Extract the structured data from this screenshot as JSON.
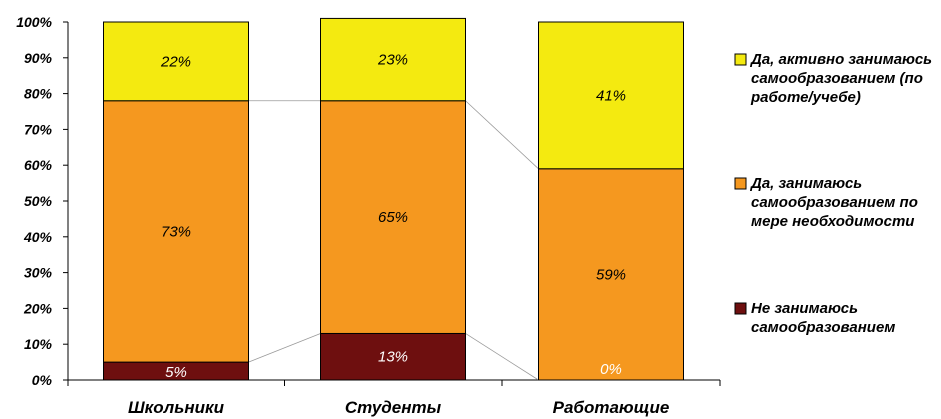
{
  "chart_data": {
    "type": "bar",
    "stacked": true,
    "percent_stacked": true,
    "categories": [
      "Школьники",
      "Студенты",
      "Работающие"
    ],
    "ylim": [
      0,
      100
    ],
    "yticks": [
      "0%",
      "10%",
      "20%",
      "30%",
      "40%",
      "50%",
      "60%",
      "70%",
      "80%",
      "90%",
      "100%"
    ],
    "series": [
      {
        "name": "Не занимаюсь самообразованием",
        "values": [
          5,
          13,
          0
        ],
        "labels": [
          "5%",
          "13%",
          "0%"
        ],
        "color": "#6e0f0f",
        "label_color": "#ffffff"
      },
      {
        "name": "Да, занимаюсь самообразованием по мере необходимости",
        "values": [
          73,
          65,
          59
        ],
        "labels": [
          "73%",
          "65%",
          "59%"
        ],
        "color": "#f5981f",
        "label_color": "#000000"
      },
      {
        "name": "Да, активно занимаюсь самообразованием (по работе/учебе)",
        "values": [
          22,
          23,
          41
        ],
        "labels": [
          "22%",
          "23%",
          "41%"
        ],
        "color": "#f4ea10",
        "label_color": "#000000"
      }
    ],
    "legend": [
      {
        "lines": [
          "Да, активно занимаюсь",
          "самообразованием (по",
          "работе/учебе)"
        ],
        "color": "#f4ea10"
      },
      {
        "lines": [
          "Да, занимаюсь",
          "самообразованием по",
          "мере необходимости"
        ],
        "color": "#f5981f"
      },
      {
        "lines": [
          "Не занимаюсь",
          "самообразованием"
        ],
        "color": "#6e0f0f"
      }
    ],
    "legend_position": "right",
    "series_lines": true,
    "grid": false
  }
}
